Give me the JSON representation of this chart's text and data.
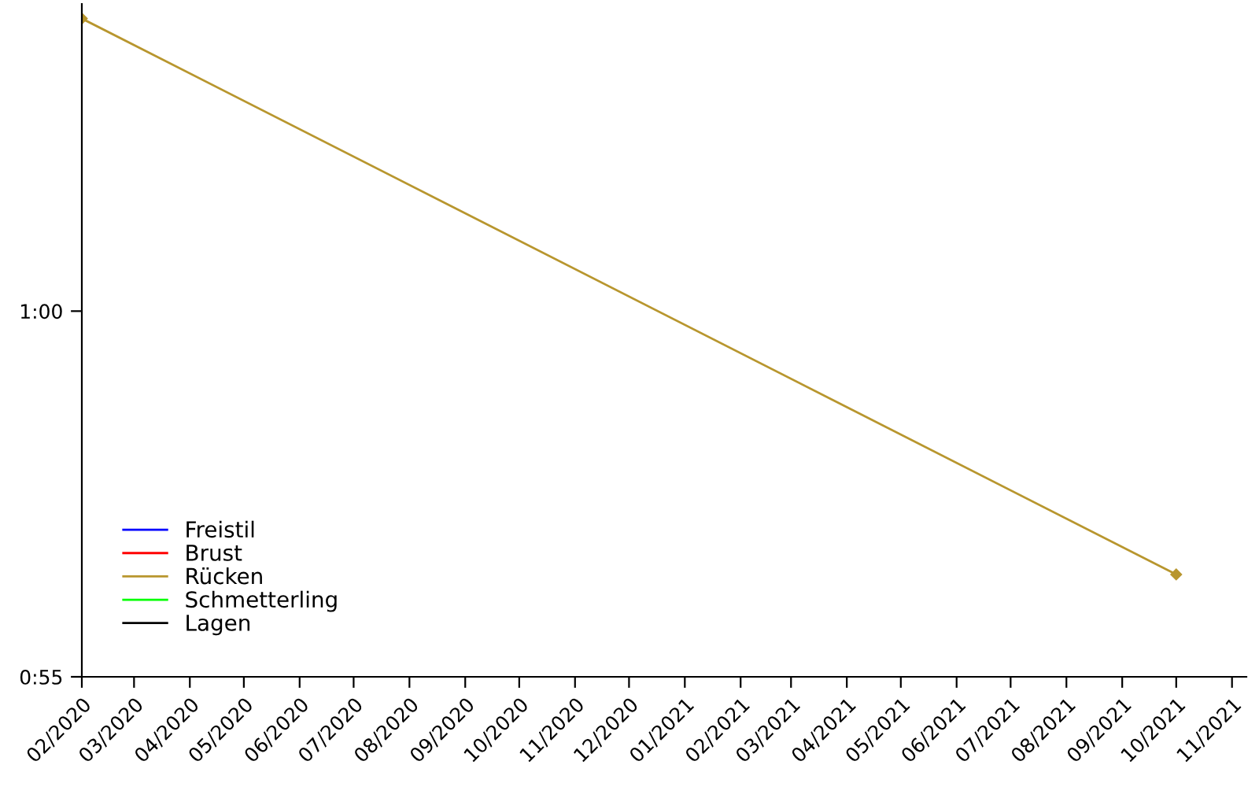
{
  "chart_data": {
    "type": "line",
    "x": [
      "2020-02-01",
      "2021-10-01"
    ],
    "series": [
      {
        "name": "Freistil",
        "color": "#0000ff",
        "values": [
          null,
          null
        ]
      },
      {
        "name": "Brust",
        "color": "#ff0000",
        "values": [
          null,
          null
        ]
      },
      {
        "name": "Rücken",
        "color": "#b8962e",
        "values": [
          64.0,
          56.4
        ]
      },
      {
        "name": "Schmetterling",
        "color": "#00ff00",
        "values": [
          null,
          null
        ]
      },
      {
        "name": "Lagen",
        "color": "#000000",
        "values": [
          null,
          null
        ]
      }
    ],
    "xlim": [
      "2020-02-01",
      "2021-11-09"
    ],
    "xticks": [
      {
        "value": "2020-02-01",
        "label": "02/2020"
      },
      {
        "value": "2020-03-01",
        "label": "03/2020"
      },
      {
        "value": "2020-04-01",
        "label": "04/2020"
      },
      {
        "value": "2020-05-01",
        "label": "05/2020"
      },
      {
        "value": "2020-06-01",
        "label": "06/2020"
      },
      {
        "value": "2020-07-01",
        "label": "07/2020"
      },
      {
        "value": "2020-08-01",
        "label": "08/2020"
      },
      {
        "value": "2020-09-01",
        "label": "09/2020"
      },
      {
        "value": "2020-10-01",
        "label": "10/2020"
      },
      {
        "value": "2020-11-01",
        "label": "11/2020"
      },
      {
        "value": "2020-12-01",
        "label": "12/2020"
      },
      {
        "value": "2021-01-01",
        "label": "01/2021"
      },
      {
        "value": "2021-02-01",
        "label": "02/2021"
      },
      {
        "value": "2021-03-01",
        "label": "03/2021"
      },
      {
        "value": "2021-04-01",
        "label": "04/2021"
      },
      {
        "value": "2021-05-01",
        "label": "05/2021"
      },
      {
        "value": "2021-06-01",
        "label": "06/2021"
      },
      {
        "value": "2021-07-01",
        "label": "07/2021"
      },
      {
        "value": "2021-08-01",
        "label": "08/2021"
      },
      {
        "value": "2021-09-01",
        "label": "09/2021"
      },
      {
        "value": "2021-10-01",
        "label": "10/2021"
      },
      {
        "value": "2021-11-01",
        "label": "11/2021"
      }
    ],
    "ylim": [
      55,
      64.2
    ],
    "yticks": [
      {
        "value": 55,
        "label": "0:55"
      },
      {
        "value": 60,
        "label": "1:00"
      }
    ],
    "marker": "diamond",
    "line_style": "solid",
    "grid": false,
    "legend": "bottom left"
  }
}
